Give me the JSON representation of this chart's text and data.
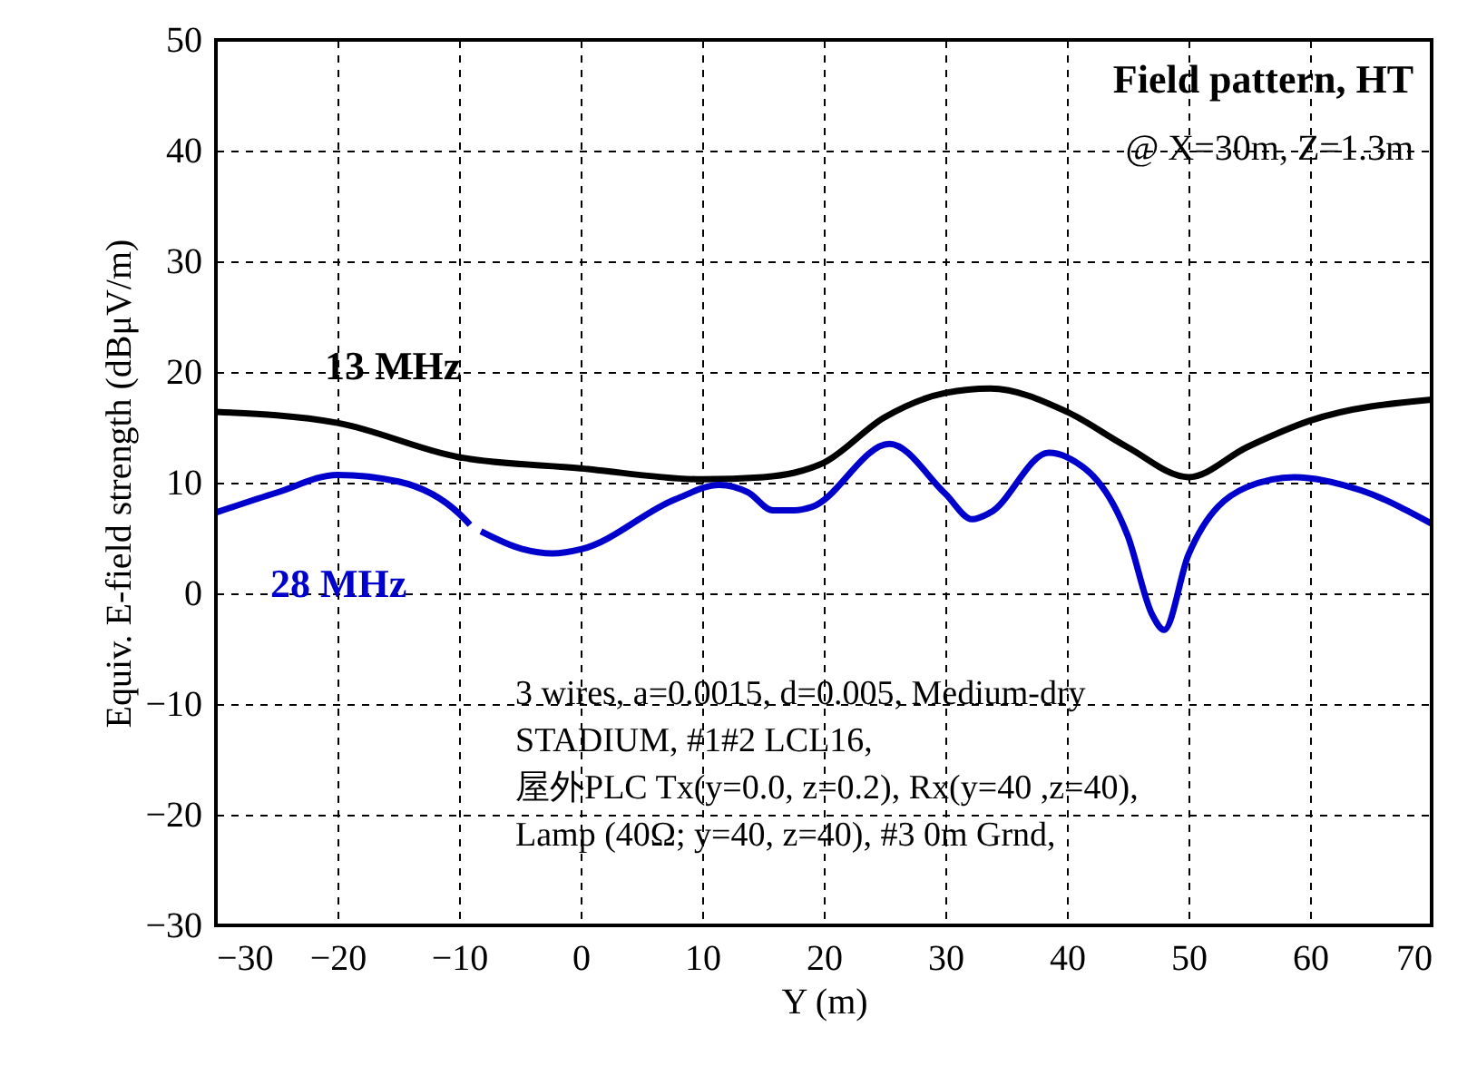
{
  "chart_data": {
    "type": "line",
    "xlabel": "Y (m)",
    "ylabel": "Equiv. E-field strength (dBμV/m)",
    "xlim": [
      -30,
      70
    ],
    "xticks": [
      -30,
      -20,
      -10,
      0,
      10,
      20,
      30,
      40,
      50,
      60,
      70
    ],
    "ylim": [
      -30,
      50
    ],
    "yticks": [
      -30,
      -20,
      -10,
      0,
      10,
      20,
      30,
      40,
      50
    ],
    "grid": true,
    "marker": "none",
    "line_style": "solid",
    "series": [
      {
        "name": "13 MHz",
        "color": "#000000",
        "x": [
          -30,
          -20,
          -10,
          0,
          10,
          15,
          17.6,
          20,
          25,
          30,
          33.7,
          40,
          45,
          50,
          54.8,
          60,
          70
        ],
        "values": [
          16.4,
          15.4,
          12.3,
          11.3,
          10.3,
          10.5,
          10.9,
          11.8,
          15.9,
          18.1,
          18.5,
          16.4,
          13.2,
          10.5,
          13.2,
          15.6,
          17.5
        ]
      },
      {
        "name": "28 MHz",
        "color": "#0000cc",
        "x": [
          -30,
          -25,
          -20,
          -15,
          -10,
          -9.1,
          -8.6,
          -8.2,
          -4.8,
          -2.3,
          0.1,
          7.8,
          11.4,
          13.8,
          15.8,
          17.6,
          19,
          25.4,
          30,
          32.2,
          33.7,
          38.5,
          40,
          45,
          47,
          48,
          50,
          54.8,
          58.7,
          64.2,
          70
        ],
        "values": [
          7.3,
          9.1,
          10.7,
          10.1,
          7.2,
          6.2,
          null,
          5.6,
          4.0,
          3.6,
          4.0,
          8.5,
          9.8,
          9.1,
          7.5,
          7.5,
          7.8,
          13.5,
          9.0,
          6.7,
          7.3,
          12.7,
          12.3,
          5.2,
          -1.9,
          -3.3,
          3.5,
          9.6,
          10.5,
          9.3,
          6.3
        ]
      }
    ],
    "annotations": [
      "Field pattern, HT",
      "@ X=30m, Z=1.3m",
      "3 wires, a=0.0015, d=0.005, Medium-dry",
      "STADIUM, #1#2 LCL16,",
      "屋外PLC Tx(y=0.0, z=0.2), Rx(y=40 ,z=40),",
      "Lamp (40Ω; y=40,  z=40), #3 0m Grnd,"
    ]
  }
}
